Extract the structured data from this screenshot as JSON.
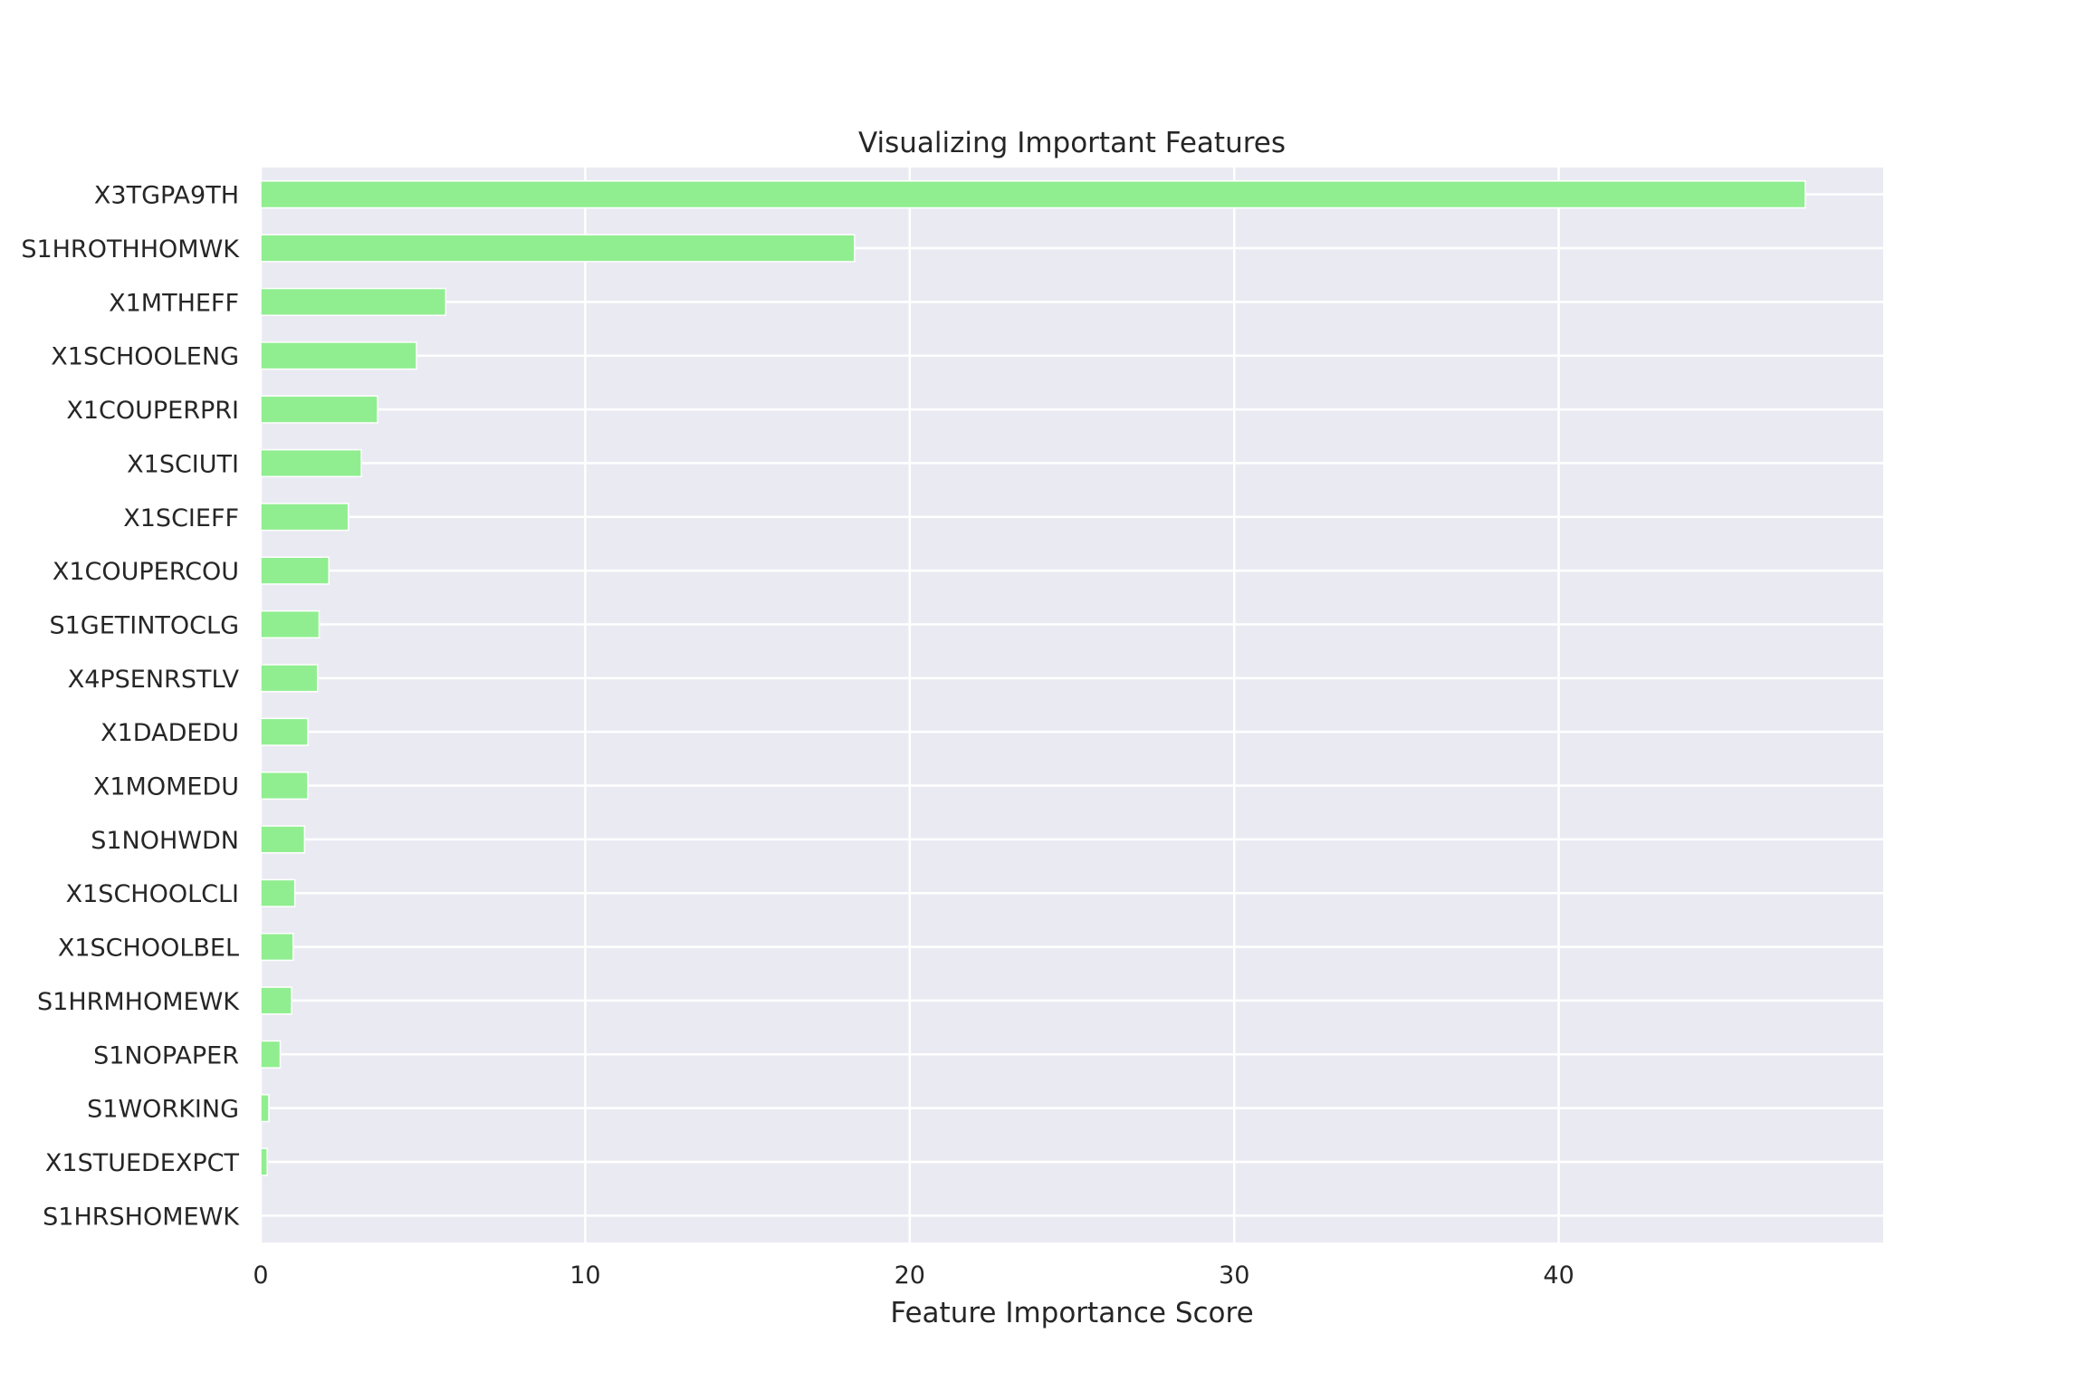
{
  "chart_data": {
    "type": "bar",
    "orientation": "horizontal",
    "title": "Visualizing Important Features",
    "xlabel": "Feature Importance Score",
    "ylabel": "",
    "xlim": [
      0,
      50
    ],
    "xticks": [
      0,
      10,
      20,
      30,
      40
    ],
    "grid": true,
    "legend": "none",
    "bar_color": "#90ee90",
    "background_color": "#eaeaf2",
    "categories": [
      "X3TGPA9TH",
      "S1HROTHHOMWK",
      "X1MTHEFF",
      "X1SCHOOLENG",
      "X1COUPERPRI",
      "X1SCIUTI",
      "X1SCIEFF",
      "X1COUPERCOU",
      "S1GETINTOCLG",
      "X4PSENRSTLV",
      "X1DADEDU",
      "X1MOMEDU",
      "S1NOHWDN",
      "X1SCHOOLCLI",
      "X1SCHOOLBEL",
      "S1HRMHOMEWK",
      "S1NOPAPER",
      "S1WORKING",
      "X1STUEDEXPCT",
      "S1HRSHOMEWK"
    ],
    "values": [
      47.6,
      18.3,
      5.7,
      4.8,
      3.6,
      3.1,
      2.7,
      2.1,
      1.8,
      1.75,
      1.45,
      1.45,
      1.35,
      1.05,
      1.0,
      0.95,
      0.6,
      0.25,
      0.2,
      0.0
    ]
  }
}
